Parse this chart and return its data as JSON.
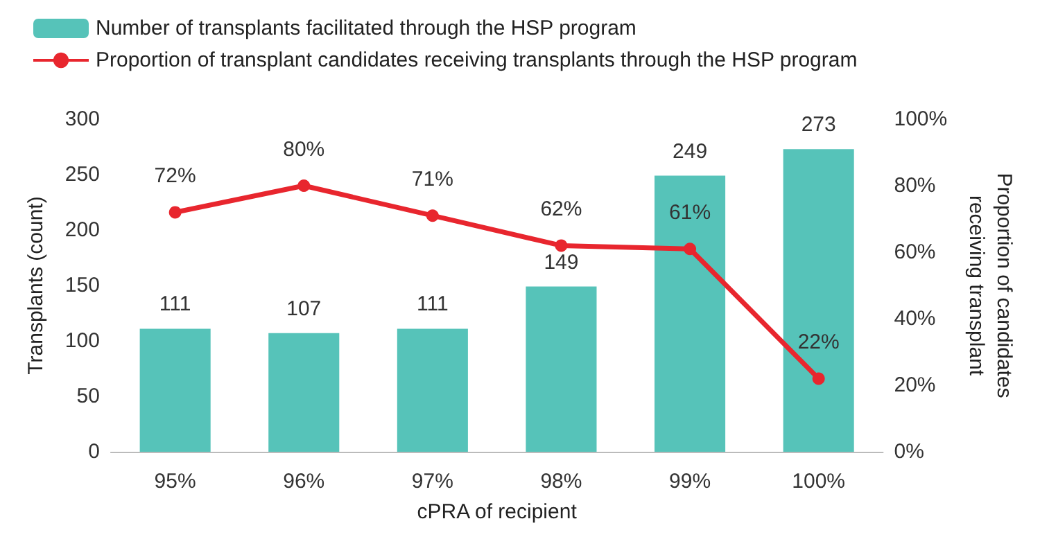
{
  "chart_data": {
    "type": "bar",
    "xlabel": "cPRA of recipient",
    "ylabel": "Transplants (count)",
    "y2label": "Proportion of candidates\nreceiving transplant",
    "categories": [
      "95%",
      "96%",
      "97%",
      "98%",
      "99%",
      "100%"
    ],
    "series": [
      {
        "name": "Number of transplants facilitated through the HSP program",
        "color": "#56c3b9",
        "values": [
          111,
          107,
          111,
          149,
          249,
          273
        ],
        "value_labels": [
          "111",
          "107",
          "111",
          "149",
          "249",
          "273"
        ]
      },
      {
        "name": "Proportion of transplant candidates receiving transplants through the HSP program",
        "type": "line",
        "axis": "y2",
        "color": "#e8262e",
        "values": [
          72,
          80,
          71,
          62,
          61,
          22
        ],
        "value_labels": [
          "72%",
          "80%",
          "71%",
          "62%",
          "61%",
          "22%"
        ]
      }
    ],
    "ylim": [
      0,
      300
    ],
    "yticks": [
      0,
      50,
      100,
      150,
      200,
      250,
      300
    ],
    "y2lim": [
      0,
      100
    ],
    "y2ticks": [
      {
        "value": 0,
        "label": "0%"
      },
      {
        "value": 20,
        "label": "20%"
      },
      {
        "value": 40,
        "label": "40%"
      },
      {
        "value": 60,
        "label": "60%"
      },
      {
        "value": 80,
        "label": "80%"
      },
      {
        "value": 100,
        "label": "100%"
      }
    ],
    "legend": "top left",
    "grid": false,
    "marker": "circle",
    "line_style": "solid"
  }
}
